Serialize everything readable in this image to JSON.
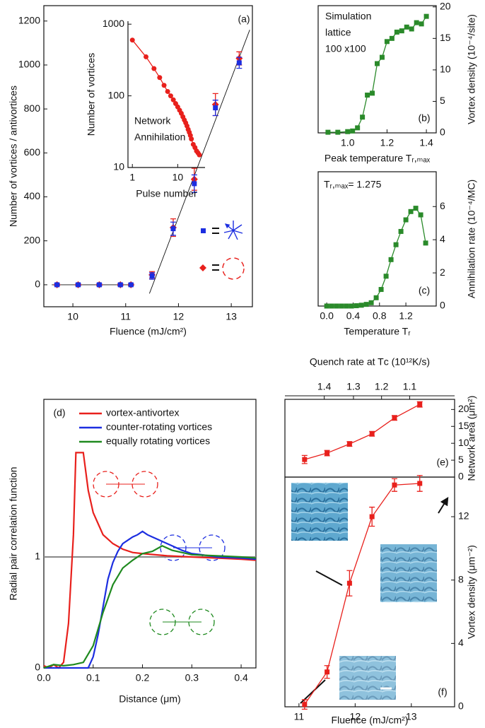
{
  "chart_data": [
    {
      "type": "scatter",
      "panel_label": "(a)",
      "xlabel": "Fluence (mJ/cm²)",
      "ylabel": "Number of vortices / antivortices",
      "xlim": [
        9.45,
        13.4
      ],
      "ylim": [
        -100,
        1270
      ],
      "xticks": [
        10,
        11,
        12,
        13
      ],
      "yticks": [
        0,
        200,
        400,
        600,
        800,
        1000,
        1200
      ],
      "x": [
        9.7,
        10.1,
        10.5,
        10.9,
        11.1,
        11.5,
        11.9,
        12.3,
        12.7,
        13.15
      ],
      "series": [
        {
          "color": "#e8201c",
          "marker": "diamond",
          "values": [
            0,
            0,
            0,
            0,
            0,
            45,
            260,
            480,
            820,
            1030
          ],
          "errors": [
            5,
            5,
            5,
            5,
            5,
            15,
            40,
            50,
            50,
            30
          ]
        },
        {
          "color": "#1c2ee0",
          "marker": "square",
          "values": [
            0,
            0,
            0,
            0,
            0,
            40,
            255,
            460,
            805,
            1010
          ],
          "errors": [
            5,
            5,
            5,
            5,
            5,
            15,
            30,
            40,
            35,
            25
          ]
        }
      ],
      "fit_lines": [
        {
          "x": [
            9.6,
            11.15
          ],
          "values": [
            0,
            0
          ]
        },
        {
          "x": [
            11.45,
            13.35
          ],
          "values": [
            -40,
            1160
          ]
        }
      ]
    },
    {
      "type": "line",
      "xlabel": "Pulse number",
      "ylabel": "Number of vortices",
      "annotation": [
        "Network",
        "Annihilation"
      ],
      "xlog": true,
      "ylog": true,
      "xlim": [
        0.8,
        40
      ],
      "ylim": [
        10,
        1100
      ],
      "xticks": [
        1,
        10
      ],
      "yticks": [
        10,
        100,
        1000
      ],
      "x": [
        1,
        2,
        3,
        4,
        5,
        6,
        7,
        8,
        9,
        10,
        11,
        12,
        13,
        14,
        15,
        16,
        17,
        18,
        19,
        20,
        22,
        24,
        26,
        28,
        30
      ],
      "series": [
        {
          "color": "#e8201c",
          "marker": "dot",
          "values": [
            600,
            350,
            240,
            180,
            140,
            115,
            100,
            88,
            78,
            70,
            63,
            57,
            51,
            46,
            42,
            38,
            34,
            31,
            28,
            25,
            21,
            19,
            17,
            16,
            15
          ]
        }
      ]
    },
    {
      "type": "line",
      "panel_label": "(b)",
      "xlabel": "Peak temperature Tᵣ,ₘₐₓ",
      "ylabel": "Vortex density (10⁻⁴/site)",
      "annotation": [
        "Simulation",
        "lattice",
        "100 x100"
      ],
      "xlim": [
        0.85,
        1.45
      ],
      "ylim": [
        0,
        20.2
      ],
      "xticks": [
        {
          "value": 1.0,
          "label": "1.0"
        },
        1.2,
        1.4
      ],
      "yticks": [
        0,
        5,
        10,
        15,
        20
      ],
      "x": [
        0.9,
        0.95,
        1.0,
        1.025,
        1.05,
        1.075,
        1.1,
        1.125,
        1.15,
        1.175,
        1.2,
        1.225,
        1.25,
        1.275,
        1.3,
        1.325,
        1.35,
        1.375,
        1.4
      ],
      "series": [
        {
          "color": "#2a8a2a",
          "marker": "square",
          "values": [
            0.1,
            0.1,
            0.2,
            0.3,
            0.8,
            2.5,
            6,
            6.3,
            11,
            12,
            14.5,
            15,
            16,
            16.2,
            16.8,
            16.5,
            17.5,
            17.3,
            18.5
          ]
        }
      ]
    },
    {
      "type": "line",
      "panel_label": "(c)",
      "xlabel": "Temperature Tᵣ",
      "ylabel": "Annihilation rate (10⁻⁴/MC)",
      "annotation": [
        "Tᵣ,ₘₐₓ= 1.275"
      ],
      "xlim": [
        -0.13,
        1.66
      ],
      "ylim": [
        0,
        8.1
      ],
      "xticks": [
        {
          "value": 0,
          "label": "0.0"
        },
        0.4,
        0.8,
        1.2
      ],
      "yticks": [
        0,
        2,
        4,
        6
      ],
      "x": [
        0,
        0.075,
        0.15,
        0.225,
        0.3,
        0.375,
        0.45,
        0.525,
        0.6,
        0.675,
        0.75,
        0.825,
        0.9,
        0.975,
        1.05,
        1.125,
        1.2,
        1.275,
        1.35,
        1.425,
        1.5
      ],
      "series": [
        {
          "color": "#2a8a2a",
          "marker": "square",
          "values": [
            0,
            0,
            0,
            0,
            0,
            0,
            0.02,
            0.05,
            0.1,
            0.2,
            0.5,
            1.0,
            1.8,
            2.8,
            3.7,
            4.5,
            5.2,
            5.7,
            5.9,
            5.5,
            3.8
          ]
        }
      ]
    },
    {
      "type": "line",
      "panel_label": "(d)",
      "xlabel": "Distance (μm)",
      "ylabel": "Radial pair correlation function",
      "legend": true,
      "xlim": [
        0,
        0.43
      ],
      "ylim": [
        0,
        2.42
      ],
      "xticks": [
        {
          "value": 0,
          "label": "0.0"
        },
        0.1,
        0.2,
        0.3,
        0.4
      ],
      "yticks": [
        0,
        1
      ],
      "reference_line": 1,
      "series": [
        {
          "name": "vortex-antivortex",
          "color": "#e8201c",
          "x": [
            0,
            0.01,
            0.02,
            0.03,
            0.04,
            0.05,
            0.06,
            0.065,
            0.08,
            0.09,
            0.1,
            0.11,
            0.12,
            0.14,
            0.16,
            0.18,
            0.2,
            0.25,
            0.3,
            0.35,
            0.4,
            0.43
          ],
          "values": [
            0.02,
            0,
            0.03,
            0,
            0.05,
            0.4,
            1.2,
            1.94,
            1.94,
            1.6,
            1.4,
            1.3,
            1.2,
            1.12,
            1.07,
            1.04,
            1.03,
            1.01,
            1.0,
            0.99,
            0.98,
            0.97
          ]
        },
        {
          "name": "counter-rotating vortices",
          "color": "#1c2ee0",
          "x": [
            0,
            0.09,
            0.1,
            0.11,
            0.12,
            0.13,
            0.14,
            0.15,
            0.16,
            0.17,
            0.18,
            0.19,
            0.2,
            0.21,
            0.22,
            0.24,
            0.26,
            0.28,
            0.3,
            0.32,
            0.35,
            0.4,
            0.43
          ],
          "values": [
            0,
            0,
            0.1,
            0.3,
            0.55,
            0.8,
            0.95,
            1.05,
            1.12,
            1.15,
            1.18,
            1.2,
            1.23,
            1.2,
            1.18,
            1.14,
            1.1,
            1.06,
            1.03,
            1.02,
            1.0,
            0.99,
            0.98
          ]
        },
        {
          "name": "equally rotating vortices",
          "color": "#1f8a1f",
          "x": [
            0,
            0.02,
            0.04,
            0.06,
            0.08,
            0.1,
            0.12,
            0.14,
            0.16,
            0.18,
            0.2,
            0.22,
            0.24,
            0.26,
            0.28,
            0.3,
            0.35,
            0.4,
            0.43
          ],
          "values": [
            0,
            0.03,
            0.02,
            0.03,
            0.05,
            0.2,
            0.5,
            0.75,
            0.9,
            0.97,
            1.03,
            1.05,
            1.1,
            1.06,
            1.04,
            1.02,
            1.01,
            1.0,
            0.99
          ]
        }
      ]
    },
    {
      "type": "line",
      "panel_label": "(e)",
      "ylabel": "Network area (μm²)",
      "x2label": "Quench rate at Tᴄ (10¹²K/s)",
      "xlim": [
        10.75,
        13.77
      ],
      "ylim": [
        0,
        23
      ],
      "yticks": [
        0,
        5,
        10,
        15,
        20
      ],
      "x2ticks": [
        {
          "value": 11.45,
          "label": "1.4"
        },
        {
          "value": 11.97,
          "label": "1.3"
        },
        {
          "value": 12.47,
          "label": "1.2"
        },
        {
          "value": 12.97,
          "label": "1.1"
        }
      ],
      "x": [
        11.1,
        11.5,
        11.9,
        12.3,
        12.7,
        13.15
      ],
      "series": [
        {
          "color": "#e8201c",
          "marker": "square",
          "values": [
            5.2,
            7.1,
            9.8,
            12.8,
            17.5,
            21.5
          ],
          "errors": [
            1.2,
            0.8,
            0.7,
            0.7,
            0.7,
            0.8
          ]
        }
      ]
    },
    {
      "type": "line",
      "panel_label": "(f)",
      "xlabel": "Fluence (mJ/cm²)",
      "ylabel": "Vortex density (μm⁻²)",
      "xlim": [
        10.75,
        13.77
      ],
      "ylim": [
        0,
        14.5
      ],
      "xticks": [
        11,
        12,
        13
      ],
      "yticks": [
        0,
        4,
        8,
        12
      ],
      "x": [
        11.1,
        11.5,
        11.9,
        12.3,
        12.7,
        13.15
      ],
      "series": [
        {
          "color": "#e8201c",
          "marker": "square",
          "values": [
            0.15,
            2.2,
            7.8,
            12,
            14,
            14.1
          ],
          "errors": [
            0.3,
            0.4,
            0.8,
            0.6,
            0.4,
            0.5
          ]
        }
      ]
    }
  ]
}
